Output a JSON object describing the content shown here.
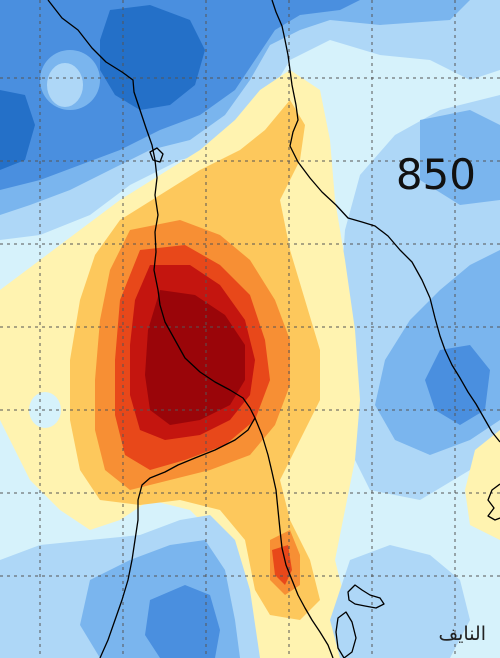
{
  "map": {
    "pressure_level": "850",
    "author_signature": "النايف",
    "fill_colors": {
      "deep_blue": "#2470c8",
      "blue": "#4a8fdf",
      "mid_blue": "#7ab5ee",
      "light_blue": "#aed7f7",
      "pale_cyan": "#d6f2fb",
      "pale_yellow": "#fff3b0",
      "yellow_orange": "#fdc85c",
      "orange": "#f78f34",
      "red_orange": "#e8481a",
      "red": "#c4150f",
      "dark_red": "#9a0509"
    },
    "line_colors": {
      "coastline": "#000000",
      "gridline": "#555555"
    },
    "grid": "dashed"
  }
}
